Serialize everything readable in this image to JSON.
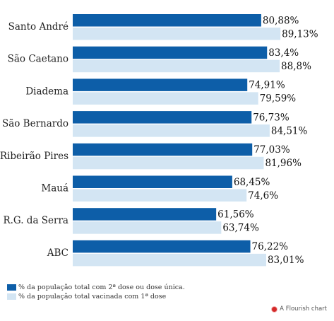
{
  "chart_data": {
    "type": "bar",
    "orientation": "horizontal",
    "categories": [
      "Santo André",
      "São Caetano",
      "Diadema",
      "São Bernardo",
      "Ribeirão Pires",
      "Mauá",
      "R.G. da Serra",
      "ABC"
    ],
    "series": [
      {
        "name": "% da população total com 2ª dose ou dose única.",
        "color": "#0d5ea8",
        "values": [
          80.88,
          83.4,
          74.91,
          76.73,
          77.03,
          68.45,
          61.56,
          76.22
        ],
        "labels": [
          "80,88%",
          "83,4%",
          "74,91%",
          "76,73%",
          "77,03%",
          "68,45%",
          "61,56%",
          "76,22%"
        ]
      },
      {
        "name": "% da população total vacinada com 1ª dose",
        "color": "#d3e5f3",
        "values": [
          89.13,
          88.8,
          79.59,
          84.51,
          81.96,
          74.6,
          63.74,
          83.01
        ],
        "labels": [
          "89,13%",
          "88,8%",
          "79,59%",
          "84,51%",
          "81,96%",
          "74,6%",
          "63,74%",
          "83,01%"
        ]
      }
    ],
    "xlim": [
      0,
      100
    ],
    "grid": false,
    "legend_position": "bottom-left"
  },
  "legend": {
    "items": [
      {
        "label": "% da população total com 2ª dose ou dose única.",
        "color": "#0d5ea8"
      },
      {
        "label": "% da população total vacinada com 1ª dose",
        "color": "#d3e5f3"
      }
    ]
  },
  "footer": {
    "credit": "A Flourish chart"
  }
}
